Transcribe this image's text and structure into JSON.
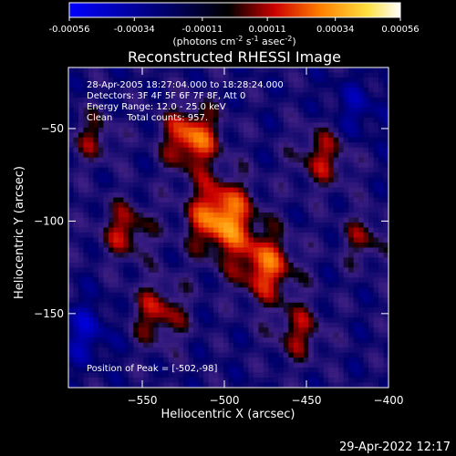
{
  "colorbar": {
    "tick_labels": [
      "-0.00056",
      "-0.00034",
      "-0.00011",
      "0.00011",
      "0.00034",
      "0.00056"
    ],
    "tick_values": [
      -0.00056,
      -0.00034,
      -0.00011,
      0.00011,
      0.00034,
      0.00056
    ],
    "range": [
      -0.00056,
      0.00056
    ],
    "unit_label": "(photons cm",
    "unit_exp1": "-2",
    "unit_mid": " s",
    "unit_exp2": "-1",
    "unit_mid2": " asec",
    "unit_exp3": "-2",
    "unit_end": ")",
    "colormap": [
      "#0000ff",
      "#000000",
      "#ff0000",
      "#ffa000",
      "#ffff80",
      "#ffffff"
    ]
  },
  "chart_data": {
    "type": "heatmap",
    "title": "Reconstructed RHESSI Image",
    "xlabel": "Heliocentric X (arcsec)",
    "ylabel": "Heliocentric Y (arcsec)",
    "xlim": [
      -595,
      -400
    ],
    "ylim": [
      -190,
      -17
    ],
    "x_ticks": [
      -550,
      -500,
      -450,
      -400
    ],
    "x_tick_labels": [
      "−550",
      "−500",
      "−450",
      "−400"
    ],
    "y_ticks": [
      -50,
      -100,
      -150
    ],
    "y_tick_labels": [
      "−50",
      "−100",
      "−150"
    ],
    "grid": false,
    "sources": [
      {
        "x": -502,
        "y": -98,
        "amp": 0.00052,
        "sigma": 14
      },
      {
        "x": -520,
        "y": -55,
        "amp": 0.00045,
        "sigma": 12
      },
      {
        "x": -475,
        "y": -125,
        "amp": 0.0004,
        "sigma": 13
      },
      {
        "x": -560,
        "y": -105,
        "amp": 0.0003,
        "sigma": 11
      },
      {
        "x": -440,
        "y": -65,
        "amp": 0.00028,
        "sigma": 12
      },
      {
        "x": -540,
        "y": -150,
        "amp": 0.0003,
        "sigma": 12
      },
      {
        "x": -455,
        "y": -160,
        "amp": 0.00026,
        "sigma": 11
      },
      {
        "x": -580,
        "y": -55,
        "amp": 0.00022,
        "sigma": 10
      },
      {
        "x": -415,
        "y": -110,
        "amp": 0.00022,
        "sigma": 10
      },
      {
        "x": -585,
        "y": -160,
        "amp": -0.0002,
        "sigma": 12
      },
      {
        "x": -420,
        "y": -40,
        "amp": -0.00015,
        "sigma": 12
      }
    ],
    "annotations": {
      "time_range": "28-Apr-2005 18:27:04.000 to 18:28:24.000",
      "detectors": "Detectors: 3F 4F 5F 6F 7F 8F, Att 0",
      "energy": "Energy Range: 12.0 - 25.0 keV",
      "clean": "Clean     Total counts: 957.",
      "peak": "Position of Peak = [-502,-98]"
    }
  },
  "footer": {
    "timestamp": "29-Apr-2022 12:17"
  }
}
